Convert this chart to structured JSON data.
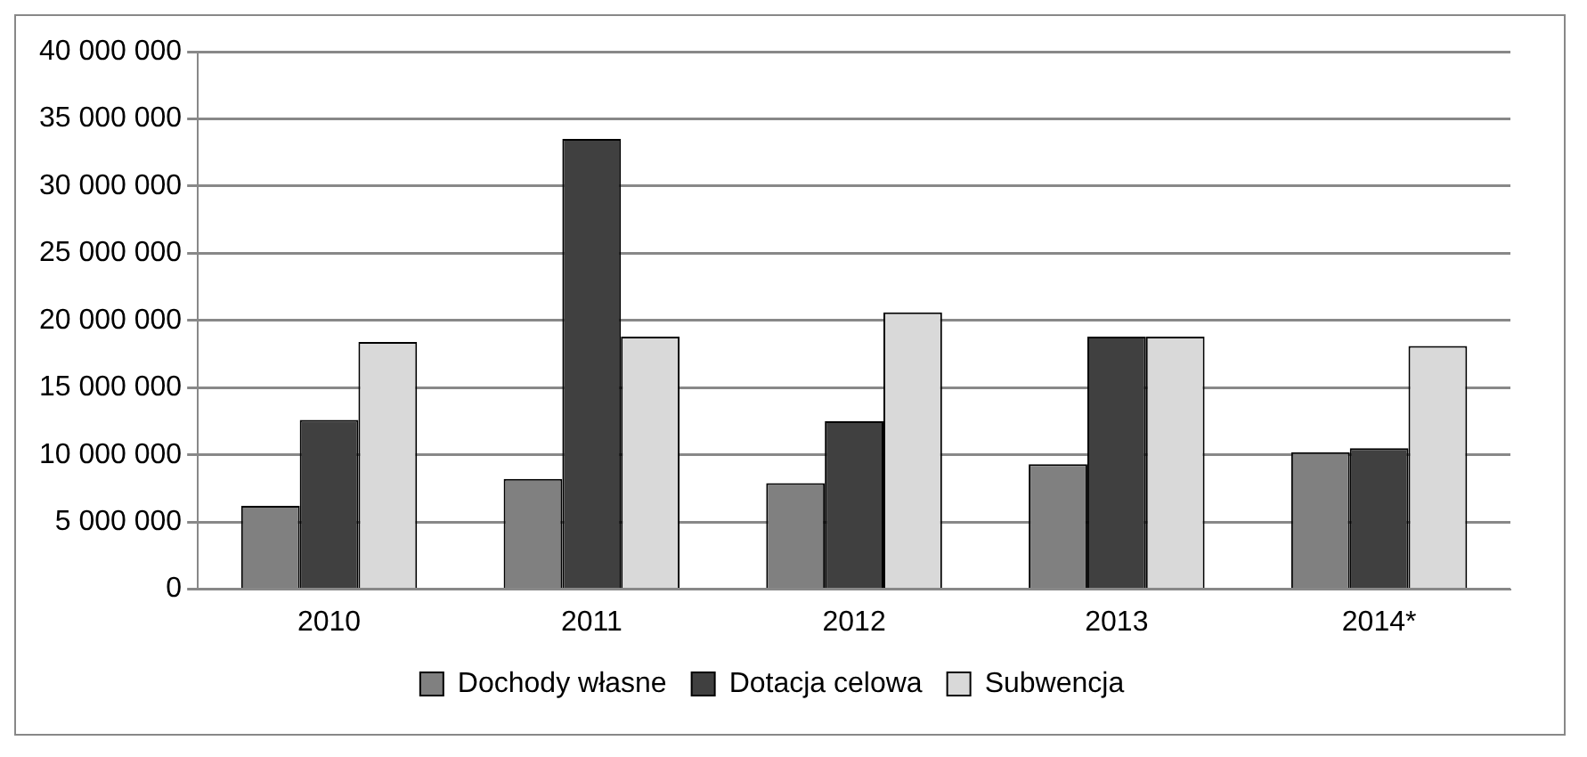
{
  "chart_data": {
    "type": "bar",
    "categories": [
      "2010",
      "2011",
      "2012",
      "2013",
      "2014*"
    ],
    "series": [
      {
        "name": "Dochody własne",
        "color": "#808080",
        "values": [
          6200000,
          8200000,
          7900000,
          9300000,
          10200000
        ]
      },
      {
        "name": "Dotacja celowa",
        "color": "#404040",
        "values": [
          12600000,
          33500000,
          12500000,
          18800000,
          10500000
        ]
      },
      {
        "name": "Subwencja",
        "color": "#d9d9d9",
        "values": [
          18400000,
          18800000,
          20600000,
          18800000,
          18100000
        ]
      }
    ],
    "ylim": [
      0,
      40000000
    ],
    "yticks": [
      {
        "value": 0,
        "label": "0"
      },
      {
        "value": 5000000,
        "label": "5 000 000"
      },
      {
        "value": 10000000,
        "label": "10 000 000"
      },
      {
        "value": 15000000,
        "label": "15 000 000"
      },
      {
        "value": 20000000,
        "label": "20 000 000"
      },
      {
        "value": 25000000,
        "label": "25 000 000"
      },
      {
        "value": 30000000,
        "label": "30 000 000"
      },
      {
        "value": 35000000,
        "label": "35 000 000"
      },
      {
        "value": 40000000,
        "label": "40 000 000"
      }
    ],
    "grid": "y",
    "legend": "bottom"
  }
}
